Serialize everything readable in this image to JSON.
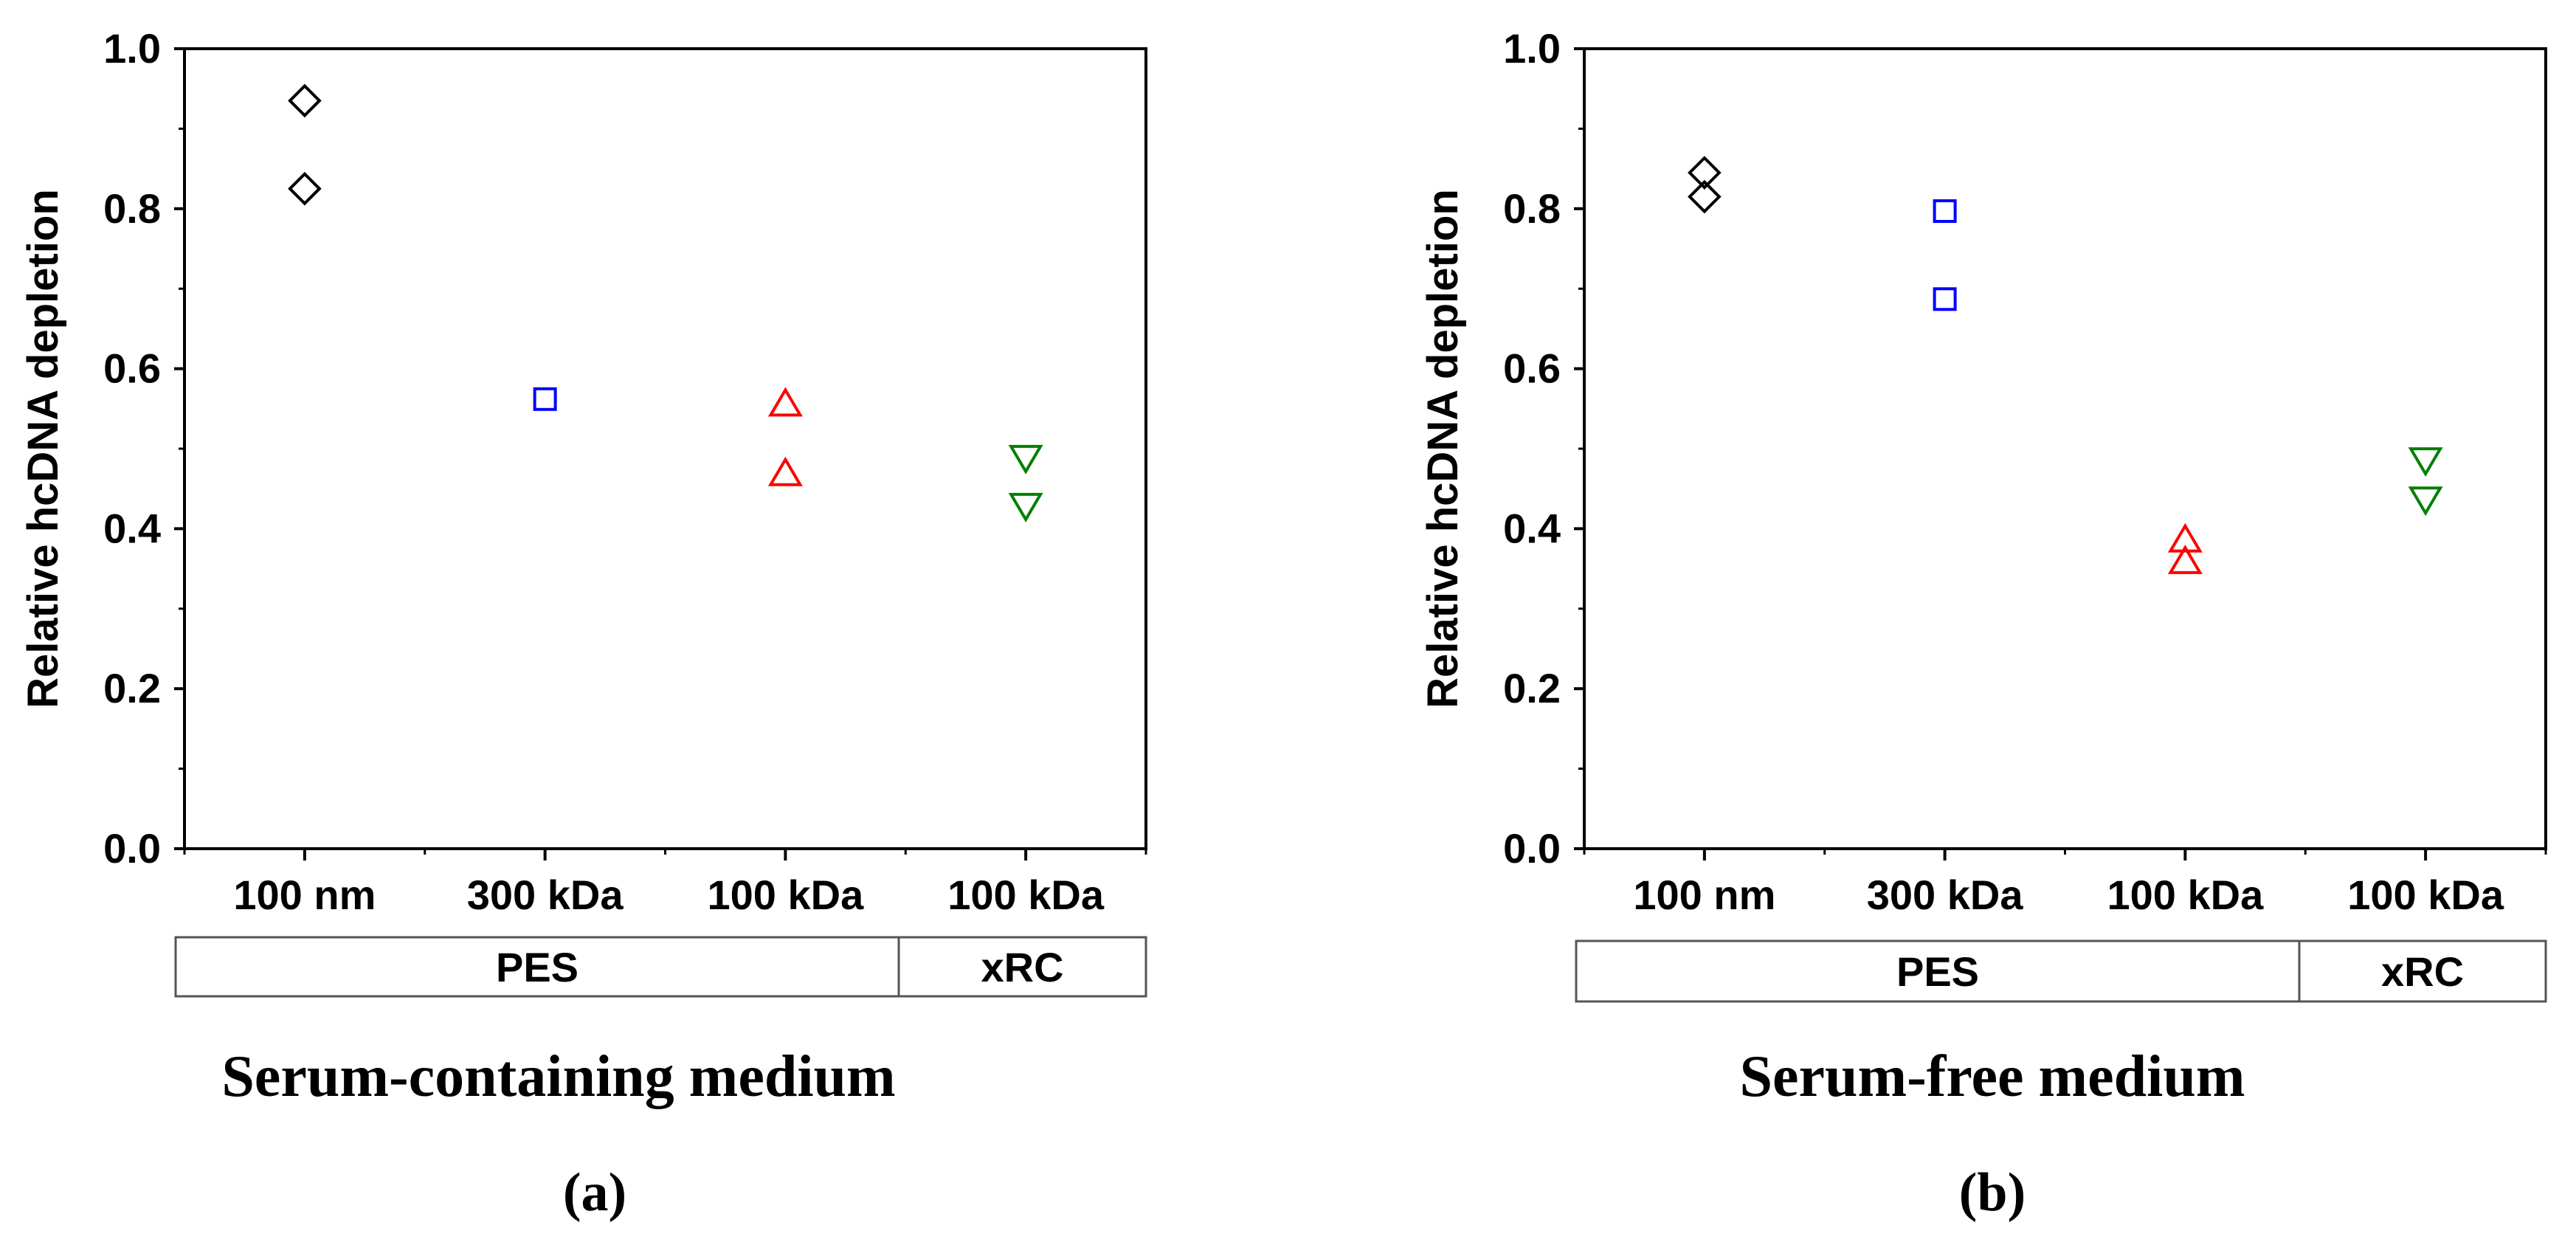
{
  "chart_data": [
    {
      "type": "scatter",
      "panel_label": "(a)",
      "caption": "Serum-containing medium",
      "ylabel": "Relative hcDNA depletion",
      "ylim": [
        0.0,
        1.0
      ],
      "yticks": [
        "0.0",
        "0.2",
        "0.4",
        "0.6",
        "0.8",
        "1.0"
      ],
      "categories": [
        "100 nm",
        "300 kDa",
        "100 kDa",
        "100 kDa"
      ],
      "groups": [
        {
          "label": "PES",
          "categories": [
            0,
            1,
            2
          ]
        },
        {
          "label": "xRC",
          "categories": [
            3
          ]
        }
      ],
      "series": [
        {
          "marker": "diamond",
          "color": "#000000",
          "category": 0,
          "values": [
            0.935,
            0.825
          ]
        },
        {
          "marker": "square",
          "color": "#0000ff",
          "category": 1,
          "values": [
            0.562
          ]
        },
        {
          "marker": "triangle-up",
          "color": "#ff0000",
          "category": 2,
          "values": [
            0.555,
            0.468
          ]
        },
        {
          "marker": "triangle-down",
          "color": "#008000",
          "category": 3,
          "values": [
            0.49,
            0.43
          ]
        }
      ]
    },
    {
      "type": "scatter",
      "panel_label": "(b)",
      "caption": "Serum-free medium",
      "ylabel": "Relative hcDNA depletion",
      "ylim": [
        0.0,
        1.0
      ],
      "yticks": [
        "0.0",
        "0.2",
        "0.4",
        "0.6",
        "0.8",
        "1.0"
      ],
      "categories": [
        "100 nm",
        "300 kDa",
        "100 kDa",
        "100 kDa"
      ],
      "groups": [
        {
          "label": "PES",
          "categories": [
            0,
            1,
            2
          ]
        },
        {
          "label": "xRC",
          "categories": [
            3
          ]
        }
      ],
      "series": [
        {
          "marker": "diamond",
          "color": "#000000",
          "category": 0,
          "values": [
            0.845,
            0.815
          ]
        },
        {
          "marker": "square",
          "color": "#0000ff",
          "category": 1,
          "values": [
            0.797,
            0.687
          ]
        },
        {
          "marker": "triangle-up",
          "color": "#ff0000",
          "category": 2,
          "values": [
            0.385,
            0.358
          ]
        },
        {
          "marker": "triangle-down",
          "color": "#008000",
          "category": 3,
          "values": [
            0.487,
            0.438
          ]
        }
      ]
    }
  ]
}
